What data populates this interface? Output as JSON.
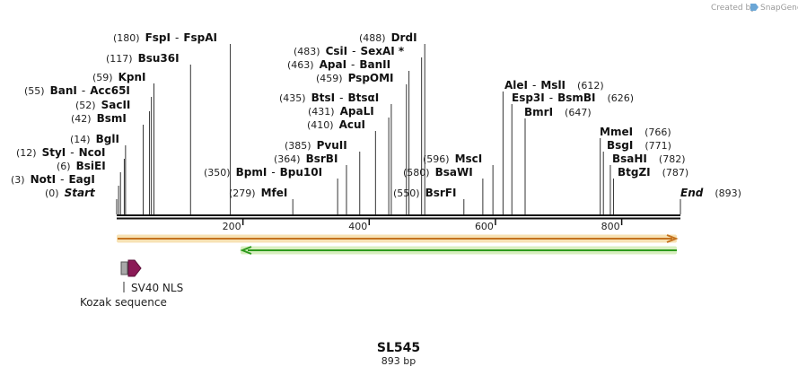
{
  "credit": {
    "text": "Created by",
    "brand": "SnapGene",
    "logo_icon": "snapgene-logo-icon"
  },
  "title": "SL545",
  "subtitle": "893 bp",
  "sequence_length": 893,
  "ruler_ticks": [
    "200",
    "400",
    "600",
    "800"
  ],
  "features": [
    {
      "id": "f1",
      "label": "SV40 NLS",
      "type": "cds-arrow",
      "color": "#8b1a57"
    },
    {
      "id": "f2",
      "label": "Kozak sequence",
      "type": "box",
      "color": "#9e9e9e"
    },
    {
      "id": "f3",
      "label": "",
      "type": "forward-arrow",
      "color": "#e8a33a"
    },
    {
      "id": "f4",
      "label": "",
      "type": "reverse-arrow",
      "color": "#2e9a1e"
    }
  ],
  "sites": [
    {
      "pos": "(0)",
      "names": [
        "Start"
      ],
      "italic": true,
      "bp": 0
    },
    {
      "pos": "(3)",
      "names": [
        "NotI",
        "EagI"
      ],
      "bp": 3
    },
    {
      "pos": "(6)",
      "names": [
        "BsiEI"
      ],
      "bp": 6
    },
    {
      "pos": "(12)",
      "names": [
        "StyI",
        "NcoI"
      ],
      "bp": 12
    },
    {
      "pos": "(14)",
      "names": [
        "BglI"
      ],
      "bp": 14
    },
    {
      "pos": "(42)",
      "names": [
        "BsmI"
      ],
      "bp": 42
    },
    {
      "pos": "(52)",
      "names": [
        "SacII"
      ],
      "bp": 52
    },
    {
      "pos": "(55)",
      "names": [
        "BanI",
        "Acc65I"
      ],
      "bp": 55
    },
    {
      "pos": "(59)",
      "names": [
        "KpnI"
      ],
      "bp": 59
    },
    {
      "pos": "(117)",
      "names": [
        "Bsu36I"
      ],
      "bp": 117
    },
    {
      "pos": "(180)",
      "names": [
        "FspI",
        "FspAI"
      ],
      "bp": 180
    },
    {
      "pos": "(279)",
      "names": [
        "MfeI"
      ],
      "bp": 279
    },
    {
      "pos": "(350)",
      "names": [
        "BpmI",
        "Bpu10I"
      ],
      "bp": 350
    },
    {
      "pos": "(364)",
      "names": [
        "BsrBI"
      ],
      "bp": 364
    },
    {
      "pos": "(385)",
      "names": [
        "PvuII"
      ],
      "bp": 385
    },
    {
      "pos": "(410)",
      "names": [
        "AcuI"
      ],
      "bp": 410
    },
    {
      "pos": "(431)",
      "names": [
        "ApaLI"
      ],
      "bp": 431
    },
    {
      "pos": "(435)",
      "names": [
        "BtsI",
        "BtsαI"
      ],
      "bp": 435
    },
    {
      "pos": "(459)",
      "names": [
        "PspOMI"
      ],
      "bp": 459
    },
    {
      "pos": "(463)",
      "names": [
        "ApaI",
        "BanII"
      ],
      "bp": 463
    },
    {
      "pos": "(483)",
      "names": [
        "CsiI",
        "SexAI *"
      ],
      "bp": 483
    },
    {
      "pos": "(488)",
      "names": [
        "DrdI"
      ],
      "bp": 488
    },
    {
      "pos": "(550)",
      "names": [
        "BsrFI"
      ],
      "bp": 550
    },
    {
      "pos": "(580)",
      "names": [
        "BsaWI"
      ],
      "bp": 580
    },
    {
      "pos": "(596)",
      "names": [
        "MscI"
      ],
      "bp": 596
    },
    {
      "pos": "(612)",
      "names": [
        "AleI",
        "MslI"
      ],
      "bp": 612
    },
    {
      "pos": "(626)",
      "names": [
        "Esp3I",
        "BsmBI"
      ],
      "bp": 626
    },
    {
      "pos": "(647)",
      "names": [
        "BmrI"
      ],
      "bp": 647
    },
    {
      "pos": "(766)",
      "names": [
        "MmeI"
      ],
      "bp": 766
    },
    {
      "pos": "(771)",
      "names": [
        "BsgI"
      ],
      "bp": 771
    },
    {
      "pos": "(782)",
      "names": [
        "BsaHI"
      ],
      "bp": 782
    },
    {
      "pos": "(787)",
      "names": [
        "BtgZI"
      ],
      "bp": 787
    },
    {
      "pos": "(893)",
      "names": [
        "End"
      ],
      "italic": true,
      "bp": 893
    }
  ]
}
